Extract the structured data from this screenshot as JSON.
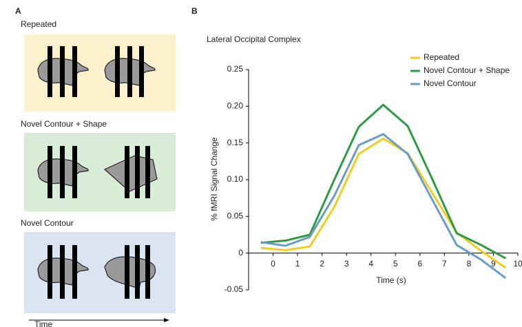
{
  "panel_a": {
    "label": "A",
    "conditions": [
      "Repeated",
      "Novel Contour + Shape",
      "Novel Contour"
    ],
    "time_label": "Time"
  },
  "chart_data": {
    "type": "line",
    "panel_label": "B",
    "title": "Lateral Occipital Complex",
    "x_label": "Time (s)",
    "y_label": "% fMRI Signal Change",
    "x": [
      -0.5,
      0.5,
      1.5,
      2.5,
      3.5,
      4.5,
      5.5,
      6.5,
      7.5,
      8.5,
      9.5
    ],
    "series": [
      {
        "name": "Repeated",
        "color": "#f2cd1d",
        "values": [
          0.007,
          0.004,
          0.009,
          0.063,
          0.135,
          0.156,
          0.136,
          0.082,
          0.028,
          0.003,
          -0.02
        ]
      },
      {
        "name": "Novel Contour + Shape",
        "color": "#2e9a44",
        "values": [
          0.014,
          0.017,
          0.025,
          0.1,
          0.172,
          0.202,
          0.173,
          0.101,
          0.027,
          0.011,
          -0.007
        ]
      },
      {
        "name": "Novel Contour",
        "color": "#6b9cc8",
        "values": [
          0.015,
          0.01,
          0.022,
          0.078,
          0.147,
          0.162,
          0.135,
          0.073,
          0.011,
          -0.009,
          -0.034
        ]
      }
    ],
    "xlim": [
      -1,
      10
    ],
    "xticks": [
      0,
      1,
      2,
      3,
      4,
      5,
      6,
      7,
      8,
      9,
      10
    ],
    "ylim": [
      -0.05,
      0.25
    ],
    "yticks": [
      0.25,
      {
        "value": 0.2,
        "label": "0.20"
      },
      0.15,
      {
        "value": 0.1,
        "label": "0.10"
      },
      0.05,
      0,
      -0.05
    ],
    "legend": "top-right"
  }
}
